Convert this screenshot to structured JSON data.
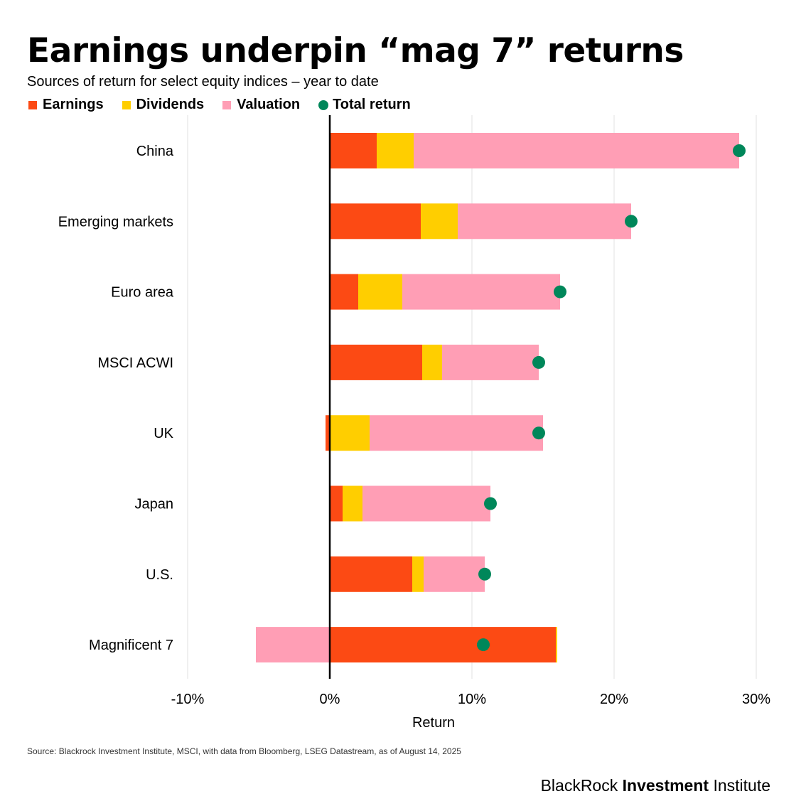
{
  "header": {
    "title": "Earnings underpin “mag 7” returns",
    "subtitle": "Sources of return for select equity indices – year to date"
  },
  "legend": {
    "earnings": "Earnings",
    "dividends": "Dividends",
    "valuation": "Valuation",
    "total": "Total return"
  },
  "colors": {
    "earnings": "#fc4a14",
    "dividends": "#ffce00",
    "valuation": "#ff9eb5",
    "total": "#00875a",
    "grid": "#e2e2e2",
    "axis": "#000000"
  },
  "chart_data": {
    "type": "bar",
    "stacked": true,
    "orientation": "horizontal",
    "categories": [
      "China",
      "Emerging markets",
      "Euro area",
      "MSCI ACWI",
      "UK",
      "Japan",
      "U.S.",
      "Magnificent 7"
    ],
    "series": [
      {
        "name": "Earnings",
        "values": [
          3.3,
          6.4,
          2.0,
          6.5,
          -0.3,
          0.9,
          5.8,
          15.9
        ]
      },
      {
        "name": "Dividends",
        "values": [
          2.6,
          2.6,
          3.1,
          1.4,
          2.8,
          1.4,
          0.8,
          0.1
        ]
      },
      {
        "name": "Valuation",
        "values": [
          22.9,
          12.2,
          11.1,
          6.8,
          12.2,
          9.0,
          4.3,
          -5.2
        ]
      }
    ],
    "total_return": {
      "name": "Total return",
      "values": [
        28.8,
        21.2,
        16.2,
        14.7,
        14.7,
        11.3,
        10.9,
        10.8
      ]
    },
    "xlim": [
      -10,
      30
    ],
    "xticks": [
      -10,
      0,
      10,
      20,
      30
    ],
    "xtick_labels": [
      "-10%",
      "0%",
      "10%",
      "20%",
      "30%"
    ],
    "xlabel": "Return",
    "ylabel": "",
    "grid": true,
    "legend_position": "top-left"
  },
  "footer": {
    "source": "Source: Blackrock Investment Institute, MSCI, with data from Bloomberg, LSEG Datastream, as of August 14, 2025",
    "brand_prefix": "BlackRock",
    "brand_bold": "Investment",
    "brand_suffix": "Institute"
  }
}
